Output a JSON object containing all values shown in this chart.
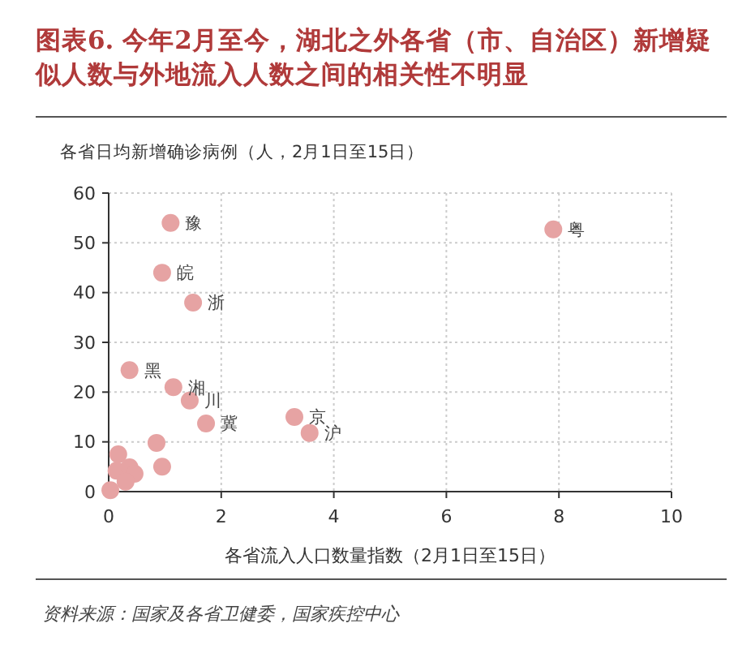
{
  "chart_data": {
    "type": "scatter",
    "title": "图表6. 今年2月至今，湖北之外各省（市、自治区）新增疑似人数与外地流入人数之间的相关性不明显",
    "ylabel": "各省日均新增确诊病例（人，2月1日至15日）",
    "xlabel": "各省流入人口数量指数（2月1日至15日）",
    "x": [
      1.1,
      7.9,
      0.95,
      1.5,
      0.37,
      1.15,
      1.44,
      1.73,
      3.3,
      3.57,
      0.17,
      0.85,
      0.14,
      0.37,
      0.46,
      0.95,
      0.3,
      0.03
    ],
    "values": [
      54,
      52.7,
      44,
      38,
      24.4,
      21,
      18.3,
      13.7,
      15,
      11.8,
      7.5,
      9.8,
      4.2,
      4.9,
      3.6,
      5,
      2,
      0.3
    ],
    "color": "#e6a3a3",
    "marker": "circle",
    "xlim": [
      0,
      10
    ],
    "xticks": [
      0,
      2,
      4,
      6,
      8,
      10
    ],
    "ylim": [
      0,
      60
    ],
    "yticks": [
      0,
      10,
      20,
      30,
      40,
      50,
      60
    ],
    "grid": true,
    "annotations": [
      {
        "text": "豫",
        "x": 1.1,
        "y": 54
      },
      {
        "text": "粤",
        "x": 7.9,
        "y": 52.7
      },
      {
        "text": "皖",
        "x": 0.95,
        "y": 44
      },
      {
        "text": "浙",
        "x": 1.5,
        "y": 38
      },
      {
        "text": "黑",
        "x": 0.37,
        "y": 24.4
      },
      {
        "text": "湘",
        "x": 1.15,
        "y": 21
      },
      {
        "text": "川",
        "x": 1.44,
        "y": 18.3
      },
      {
        "text": "冀",
        "x": 1.73,
        "y": 13.7
      },
      {
        "text": "京",
        "x": 3.3,
        "y": 15
      },
      {
        "text": "沪",
        "x": 3.57,
        "y": 11.8
      },
      "资料来源：国家及各省卫健委，国家疾控中心"
    ]
  }
}
